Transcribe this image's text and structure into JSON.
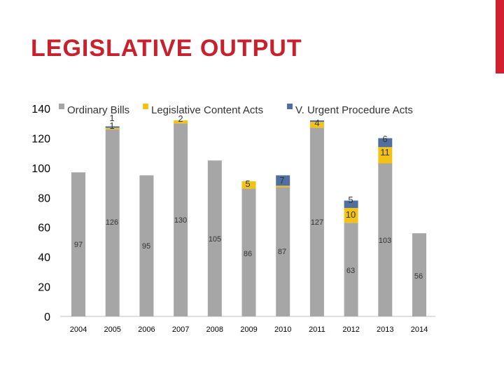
{
  "title": "LEGISLATIVE OUTPUT",
  "colors": {
    "accent": "#d3202f",
    "title": "#c8202c",
    "bills": "#a6a6a6",
    "content": "#f2c314",
    "urgent": "#4f6fa0"
  },
  "chart_data": {
    "type": "bar",
    "stacked": true,
    "categories": [
      "2004",
      "2005",
      "2006",
      "2007",
      "2008",
      "2009",
      "2010",
      "2011",
      "2012",
      "2013",
      "2014"
    ],
    "series": [
      {
        "name": "Ordinary Bills",
        "values": [
          97,
          126,
          95,
          130,
          105,
          86,
          87,
          127,
          63,
          103,
          56
        ]
      },
      {
        "name": "Legislative Content Acts",
        "values": [
          0,
          1,
          0,
          2,
          0,
          5,
          1,
          4,
          10,
          11,
          0
        ]
      },
      {
        "name": "V. Urgent Procedure Acts",
        "values": [
          0,
          1,
          0,
          0,
          0,
          0,
          7,
          1,
          5,
          6,
          0
        ]
      }
    ],
    "data_labels": {
      "Ordinary Bills": [
        "97",
        "126",
        "95",
        "130",
        "105",
        "86",
        "87",
        "127",
        "63",
        "103",
        "56"
      ],
      "Legislative Content Acts": [
        "",
        "1",
        "",
        "2",
        "",
        "5",
        "",
        "4",
        "10",
        "11",
        ""
      ],
      "V. Urgent Procedure Acts": [
        "",
        "1",
        "",
        "",
        "",
        "",
        "7",
        "",
        "5",
        "6",
        ""
      ]
    },
    "ylim": [
      0,
      140
    ],
    "yticks": [
      0,
      20,
      40,
      60,
      80,
      100,
      120,
      140
    ],
    "legend": "top",
    "grid": false
  }
}
